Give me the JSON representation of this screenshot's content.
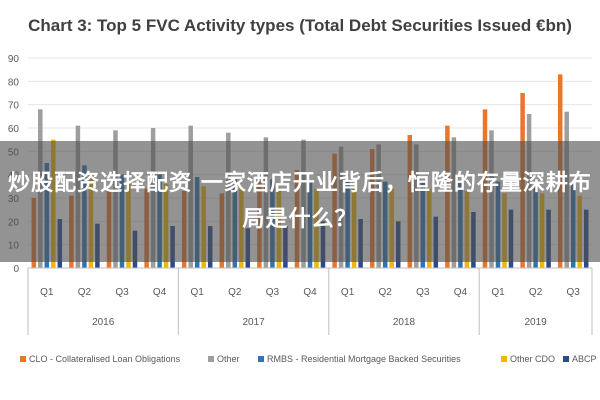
{
  "overlay": {
    "headline": "炒股配资选择配资 一家酒店开业背后，恒隆的存量深耕布局是什么？"
  },
  "colors": {
    "clo": "#E8762B",
    "other": "#9E9E9E",
    "rmbs": "#2E75B6",
    "other_cdo": "#F2B705",
    "abcp": "#2A4A8C",
    "axis_text": "#595959",
    "grid": "#E6E6E6"
  },
  "chart_data": {
    "type": "bar",
    "title": "Chart 3: Top 5 FVC Activity types (Total Debt Securities Issued €bn)",
    "xlabel": "",
    "ylabel": "",
    "ylim": [
      0,
      90
    ],
    "yticks": [
      0,
      10,
      20,
      30,
      40,
      50,
      60,
      70,
      80,
      90
    ],
    "grid": true,
    "legend_position": "bottom",
    "categories": [
      "Q1",
      "Q2",
      "Q3",
      "Q4",
      "Q1",
      "Q2",
      "Q3",
      "Q4",
      "Q1",
      "Q2",
      "Q3",
      "Q4",
      "Q1",
      "Q2",
      "Q3"
    ],
    "year_groups": [
      {
        "label": "2016",
        "count": 4
      },
      {
        "label": "2017",
        "count": 4
      },
      {
        "label": "2018",
        "count": 4
      },
      {
        "label": "2019",
        "count": 3
      }
    ],
    "series": [
      {
        "name": "CLO - Collateralised Loan Obligations",
        "color": "#E8762B",
        "values": [
          30,
          31,
          33,
          34,
          33,
          32,
          37,
          42,
          49,
          51,
          57,
          61,
          68,
          75,
          83
        ]
      },
      {
        "name": "Other",
        "color": "#9E9E9E",
        "values": [
          68,
          61,
          59,
          60,
          61,
          58,
          56,
          55,
          52,
          53,
          53,
          56,
          59,
          66,
          67
        ]
      },
      {
        "name": "RMBS - Residential Mortgage Backed Securities",
        "color": "#2E75B6",
        "values": [
          45,
          44,
          40,
          40,
          39,
          38,
          38,
          37,
          37,
          37,
          37,
          37,
          37,
          37,
          37
        ]
      },
      {
        "name": "Other CDO",
        "color": "#F2B705",
        "values": [
          55,
          40,
          36,
          36,
          35,
          34,
          34,
          34,
          34,
          34,
          34,
          33,
          32,
          32,
          31
        ]
      },
      {
        "name": "ABCP",
        "color": "#2A4A8C",
        "values": [
          21,
          19,
          16,
          18,
          18,
          17,
          18,
          20,
          21,
          20,
          22,
          24,
          25,
          25,
          25
        ]
      }
    ]
  }
}
